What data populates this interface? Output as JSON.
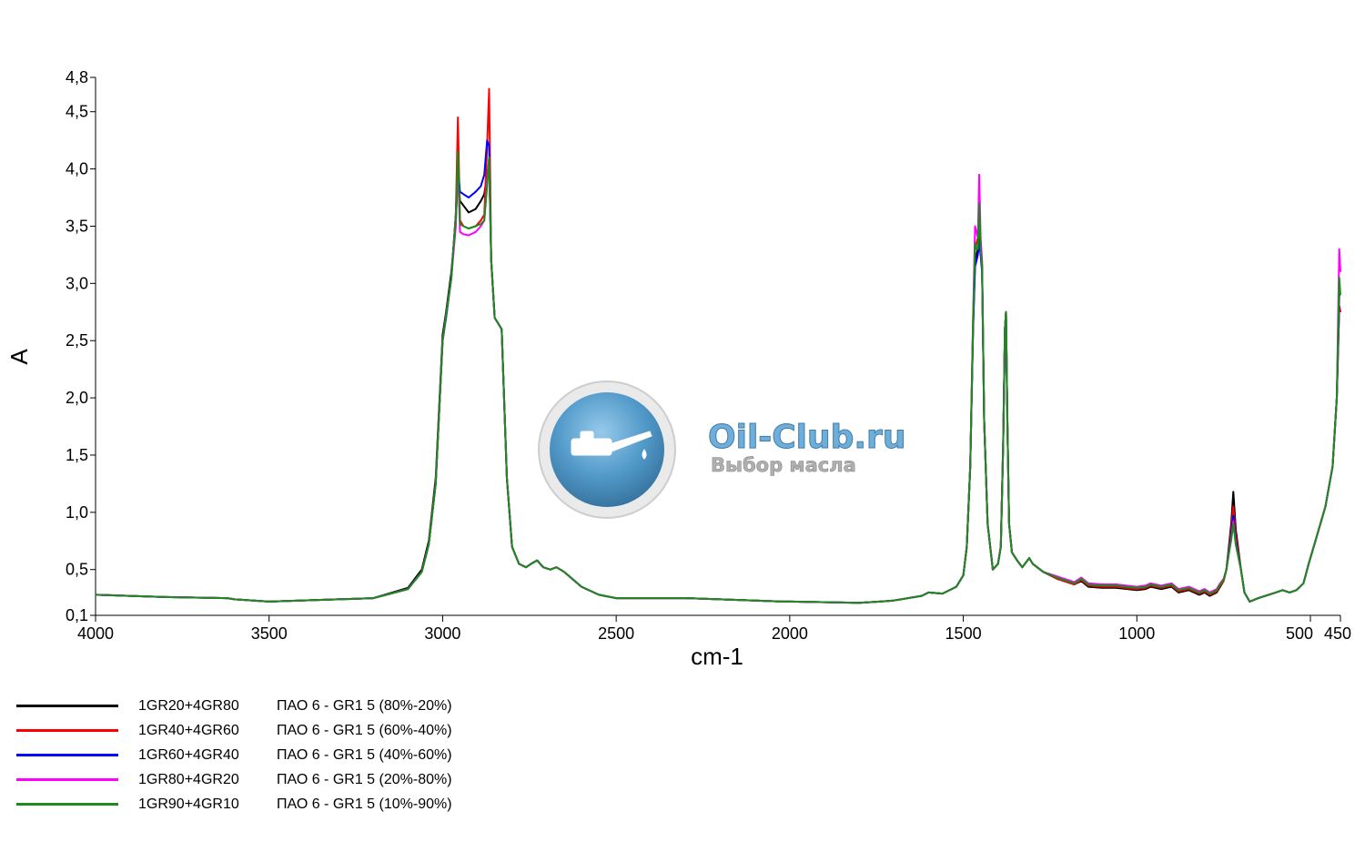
{
  "watermark": {
    "site": "Oil-Club.ru",
    "slogan": "Выбор масла",
    "icon": "oil-can-icon",
    "colors": {
      "blue": "#3f8fc4",
      "grey": "#9a9a9a"
    }
  },
  "legend_entries": [
    {
      "code": "1GR20+4GR80",
      "desc": "ПАО 6 - GR1 5 (80%-20%)"
    },
    {
      "code": "1GR40+4GR60",
      "desc": "ПАО 6 - GR1 5 (60%-40%)"
    },
    {
      "code": "1GR60+4GR40",
      "desc": "ПАО 6 - GR1 5 (40%-60%)"
    },
    {
      "code": "1GR80+4GR20",
      "desc": "ПАО 6 - GR1 5 (20%-80%)"
    },
    {
      "code": "1GR90+4GR10",
      "desc": "ПАО 6 - GR1 5 (10%-90%)"
    }
  ],
  "chart_data": {
    "type": "line",
    "title": "",
    "xlabel": "cm-1",
    "ylabel": "A",
    "xlim": [
      4000,
      450
    ],
    "ylim": [
      0.1,
      4.8
    ],
    "x_reversed": true,
    "grid": false,
    "legend_position": "bottom-left",
    "x_ticks": [
      4000,
      3500,
      3000,
      2500,
      2000,
      1500,
      1000,
      500,
      450
    ],
    "x_tick_labels": [
      "4000",
      "3500",
      "3000",
      "2500",
      "2000",
      "1500",
      "1000",
      "500",
      "450"
    ],
    "y_ticks": [
      0.1,
      0.5,
      1.0,
      1.5,
      2.0,
      2.5,
      3.0,
      3.5,
      4.0,
      4.5,
      4.8
    ],
    "y_tick_labels": [
      "0,1",
      "0,5",
      "1,0",
      "1,5",
      "2,0",
      "2,5",
      "3,0",
      "3,5",
      "4,0",
      "4,5",
      "4,8"
    ],
    "x": [
      4000,
      3800,
      3620,
      3600,
      3500,
      3300,
      3200,
      3100,
      3060,
      3040,
      3020,
      3000,
      2990,
      2975,
      2962,
      2956,
      2950,
      2940,
      2925,
      2905,
      2890,
      2880,
      2872,
      2866,
      2860,
      2850,
      2840,
      2830,
      2815,
      2800,
      2780,
      2760,
      2745,
      2728,
      2710,
      2690,
      2672,
      2650,
      2600,
      2550,
      2500,
      2300,
      2100,
      2020,
      2000,
      1800,
      1740,
      1700,
      1620,
      1600,
      1560,
      1520,
      1500,
      1490,
      1480,
      1472,
      1466,
      1462,
      1458,
      1454,
      1450,
      1446,
      1440,
      1430,
      1415,
      1400,
      1392,
      1385,
      1380,
      1377,
      1373,
      1368,
      1360,
      1345,
      1330,
      1310,
      1300,
      1270,
      1230,
      1180,
      1160,
      1140,
      1100,
      1060,
      1000,
      975,
      960,
      930,
      900,
      880,
      850,
      820,
      805,
      790,
      770,
      760,
      750,
      742,
      735,
      728,
      722,
      715,
      700,
      690,
      675,
      650,
      600,
      580,
      560,
      540,
      520,
      505,
      490,
      475,
      463,
      456,
      452,
      450
    ],
    "series": [
      {
        "name": "1GR20+4GR80",
        "color": "#000000",
        "values": [
          0.28,
          0.26,
          0.25,
          0.24,
          0.22,
          0.24,
          0.25,
          0.34,
          0.5,
          0.75,
          1.3,
          2.55,
          2.75,
          3.1,
          3.55,
          3.95,
          3.72,
          3.68,
          3.62,
          3.65,
          3.72,
          3.78,
          3.95,
          4.05,
          3.2,
          2.7,
          2.65,
          2.6,
          1.3,
          0.7,
          0.55,
          0.52,
          0.55,
          0.58,
          0.52,
          0.5,
          0.52,
          0.48,
          0.35,
          0.28,
          0.25,
          0.25,
          0.23,
          0.22,
          0.22,
          0.21,
          0.22,
          0.23,
          0.27,
          0.3,
          0.29,
          0.35,
          0.45,
          0.7,
          1.4,
          2.6,
          3.2,
          3.25,
          3.3,
          3.4,
          3.3,
          3.15,
          1.8,
          0.9,
          0.5,
          0.55,
          0.7,
          1.6,
          2.6,
          2.75,
          1.8,
          0.9,
          0.65,
          0.58,
          0.52,
          0.6,
          0.55,
          0.48,
          0.42,
          0.37,
          0.4,
          0.35,
          0.34,
          0.34,
          0.32,
          0.33,
          0.35,
          0.33,
          0.35,
          0.3,
          0.32,
          0.28,
          0.3,
          0.27,
          0.3,
          0.35,
          0.4,
          0.5,
          0.7,
          0.9,
          1.18,
          0.85,
          0.5,
          0.3,
          0.22,
          0.25,
          0.3,
          0.32,
          0.3,
          0.32,
          0.38,
          0.55,
          0.78,
          1.05,
          1.4,
          2.0,
          2.8,
          2.75
        ]
      },
      {
        "name": "1GR40+4GR60",
        "color": "#ff0000",
        "values": [
          0.28,
          0.26,
          0.25,
          0.24,
          0.22,
          0.24,
          0.25,
          0.33,
          0.48,
          0.72,
          1.25,
          2.5,
          2.72,
          3.05,
          3.6,
          4.45,
          3.55,
          3.5,
          3.48,
          3.5,
          3.55,
          3.6,
          4.2,
          4.7,
          3.2,
          2.7,
          2.65,
          2.6,
          1.3,
          0.7,
          0.55,
          0.52,
          0.55,
          0.58,
          0.52,
          0.5,
          0.52,
          0.48,
          0.35,
          0.28,
          0.25,
          0.25,
          0.23,
          0.22,
          0.22,
          0.21,
          0.22,
          0.23,
          0.27,
          0.3,
          0.29,
          0.35,
          0.45,
          0.7,
          1.4,
          2.65,
          3.3,
          3.35,
          3.4,
          3.5,
          3.35,
          3.15,
          1.8,
          0.9,
          0.5,
          0.55,
          0.7,
          1.6,
          2.6,
          2.75,
          1.8,
          0.9,
          0.65,
          0.58,
          0.52,
          0.6,
          0.55,
          0.48,
          0.42,
          0.37,
          0.41,
          0.36,
          0.35,
          0.35,
          0.33,
          0.34,
          0.36,
          0.34,
          0.36,
          0.31,
          0.33,
          0.29,
          0.31,
          0.28,
          0.31,
          0.36,
          0.4,
          0.5,
          0.68,
          0.85,
          1.05,
          0.8,
          0.5,
          0.3,
          0.22,
          0.25,
          0.3,
          0.32,
          0.3,
          0.32,
          0.38,
          0.55,
          0.78,
          1.05,
          1.4,
          2.0,
          2.8,
          2.75
        ]
      },
      {
        "name": "1GR60+4GR40",
        "color": "#0000ff",
        "values": [
          0.28,
          0.26,
          0.25,
          0.24,
          0.22,
          0.24,
          0.25,
          0.33,
          0.48,
          0.72,
          1.25,
          2.5,
          2.7,
          3.05,
          3.6,
          4.0,
          3.8,
          3.78,
          3.75,
          3.8,
          3.85,
          3.95,
          4.25,
          4.2,
          3.2,
          2.7,
          2.65,
          2.6,
          1.3,
          0.7,
          0.55,
          0.52,
          0.55,
          0.58,
          0.52,
          0.5,
          0.52,
          0.48,
          0.35,
          0.28,
          0.25,
          0.25,
          0.23,
          0.22,
          0.22,
          0.21,
          0.22,
          0.23,
          0.27,
          0.3,
          0.29,
          0.35,
          0.45,
          0.7,
          1.4,
          2.6,
          3.15,
          3.2,
          3.25,
          3.35,
          3.25,
          3.1,
          1.8,
          0.9,
          0.5,
          0.55,
          0.7,
          1.6,
          2.6,
          2.75,
          1.8,
          0.9,
          0.65,
          0.58,
          0.52,
          0.6,
          0.55,
          0.48,
          0.43,
          0.38,
          0.42,
          0.37,
          0.36,
          0.36,
          0.34,
          0.35,
          0.37,
          0.35,
          0.37,
          0.32,
          0.34,
          0.3,
          0.32,
          0.29,
          0.32,
          0.37,
          0.41,
          0.5,
          0.66,
          0.8,
          0.97,
          0.75,
          0.5,
          0.3,
          0.22,
          0.25,
          0.3,
          0.32,
          0.3,
          0.32,
          0.38,
          0.55,
          0.78,
          1.05,
          1.4,
          2.0,
          2.9,
          2.9
        ]
      },
      {
        "name": "1GR80+4GR20",
        "color": "#ff00ff",
        "values": [
          0.28,
          0.26,
          0.25,
          0.24,
          0.22,
          0.24,
          0.25,
          0.33,
          0.48,
          0.72,
          1.25,
          2.5,
          2.72,
          3.05,
          3.5,
          4.05,
          3.45,
          3.43,
          3.42,
          3.45,
          3.5,
          3.55,
          3.9,
          4.1,
          3.2,
          2.7,
          2.65,
          2.6,
          1.3,
          0.7,
          0.55,
          0.52,
          0.55,
          0.58,
          0.52,
          0.5,
          0.52,
          0.48,
          0.35,
          0.28,
          0.25,
          0.25,
          0.23,
          0.22,
          0.22,
          0.21,
          0.22,
          0.23,
          0.27,
          0.3,
          0.29,
          0.35,
          0.45,
          0.7,
          1.4,
          2.7,
          3.5,
          3.45,
          3.4,
          3.95,
          3.4,
          3.2,
          1.8,
          0.9,
          0.5,
          0.55,
          0.7,
          1.6,
          2.6,
          2.75,
          1.8,
          0.9,
          0.65,
          0.58,
          0.52,
          0.6,
          0.55,
          0.48,
          0.44,
          0.39,
          0.43,
          0.38,
          0.37,
          0.37,
          0.35,
          0.36,
          0.38,
          0.36,
          0.38,
          0.33,
          0.35,
          0.31,
          0.33,
          0.3,
          0.33,
          0.38,
          0.42,
          0.5,
          0.64,
          0.77,
          0.92,
          0.72,
          0.5,
          0.3,
          0.22,
          0.25,
          0.3,
          0.32,
          0.3,
          0.32,
          0.38,
          0.55,
          0.78,
          1.05,
          1.4,
          2.0,
          3.3,
          3.1
        ]
      },
      {
        "name": "1GR90+4GR10",
        "color": "#1a8c1a",
        "values": [
          0.28,
          0.26,
          0.25,
          0.24,
          0.22,
          0.24,
          0.25,
          0.33,
          0.48,
          0.72,
          1.25,
          2.5,
          2.72,
          3.05,
          3.6,
          4.15,
          3.52,
          3.5,
          3.48,
          3.5,
          3.52,
          3.55,
          3.85,
          4.1,
          3.2,
          2.7,
          2.65,
          2.6,
          1.3,
          0.7,
          0.55,
          0.52,
          0.55,
          0.58,
          0.52,
          0.5,
          0.52,
          0.48,
          0.35,
          0.28,
          0.25,
          0.25,
          0.23,
          0.22,
          0.22,
          0.21,
          0.22,
          0.23,
          0.27,
          0.3,
          0.29,
          0.35,
          0.45,
          0.7,
          1.4,
          2.65,
          3.35,
          3.3,
          3.3,
          3.7,
          3.3,
          3.15,
          1.8,
          0.9,
          0.5,
          0.55,
          0.7,
          1.6,
          2.6,
          2.75,
          1.8,
          0.9,
          0.65,
          0.58,
          0.52,
          0.6,
          0.55,
          0.48,
          0.43,
          0.38,
          0.42,
          0.37,
          0.36,
          0.36,
          0.34,
          0.35,
          0.37,
          0.35,
          0.37,
          0.32,
          0.34,
          0.3,
          0.32,
          0.29,
          0.32,
          0.37,
          0.41,
          0.5,
          0.64,
          0.76,
          0.9,
          0.72,
          0.5,
          0.3,
          0.22,
          0.25,
          0.3,
          0.32,
          0.3,
          0.32,
          0.38,
          0.55,
          0.78,
          1.05,
          1.4,
          2.0,
          3.05,
          2.9
        ]
      }
    ]
  }
}
